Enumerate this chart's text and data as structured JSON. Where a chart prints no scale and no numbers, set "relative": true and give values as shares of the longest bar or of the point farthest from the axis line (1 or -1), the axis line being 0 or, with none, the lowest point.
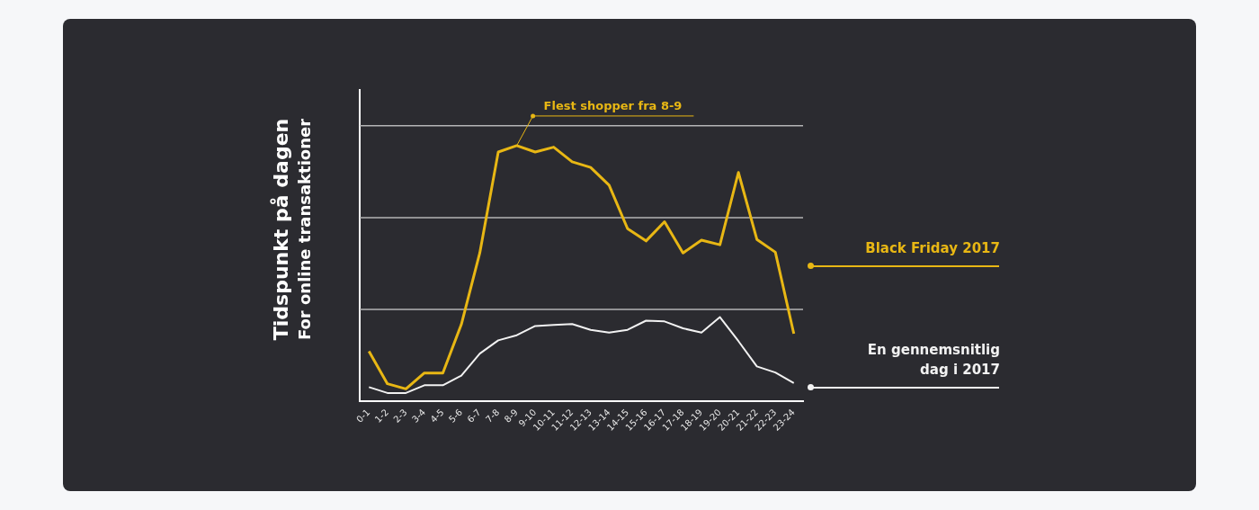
{
  "chart_data": {
    "type": "line",
    "title": "Tidspunkt på dagen",
    "subtitle": "For online transaktioner",
    "relative": true,
    "legend": "right",
    "marker": "none",
    "categories": [
      "0-1",
      "1-2",
      "2-3",
      "3-4",
      "4-5",
      "5-6",
      "6-7",
      "7-8",
      "8-9",
      "9-10",
      "10-11",
      "11-12",
      "12-13",
      "13-14",
      "14-15",
      "15-16",
      "16-17",
      "17-18",
      "18-19",
      "19-20",
      "20-21",
      "21-22",
      "22-23",
      "23-24"
    ],
    "series": [
      {
        "name": "Black Friday 2017",
        "color": "#e8b714",
        "values": [
          0.195,
          0.068,
          0.048,
          0.11,
          0.11,
          0.3,
          0.58,
          0.975,
          1,
          0.975,
          0.994,
          0.937,
          0.915,
          0.845,
          0.675,
          0.627,
          0.702,
          0.58,
          0.63,
          0.612,
          0.895,
          0.633,
          0.583,
          0.264
        ]
      },
      {
        "name": "En gennemsnitlig dag i 2017",
        "color": "#f2f2f2",
        "values": [
          0.055,
          0.032,
          0.032,
          0.062,
          0.062,
          0.1,
          0.186,
          0.238,
          0.258,
          0.294,
          0.298,
          0.302,
          0.279,
          0.268,
          0.279,
          0.315,
          0.312,
          0.285,
          0.268,
          0.329,
          0.235,
          0.136,
          0.112,
          0.071
        ]
      }
    ],
    "ref_lines": [
      {
        "axis": "y",
        "value": 0.359
      },
      {
        "axis": "y",
        "value": 0.718
      },
      {
        "axis": "y",
        "value": 1.078
      }
    ],
    "annotations": [
      {
        "text": "Flest shopper fra 8-9",
        "x": "8-9",
        "y": 1
      }
    ]
  }
}
